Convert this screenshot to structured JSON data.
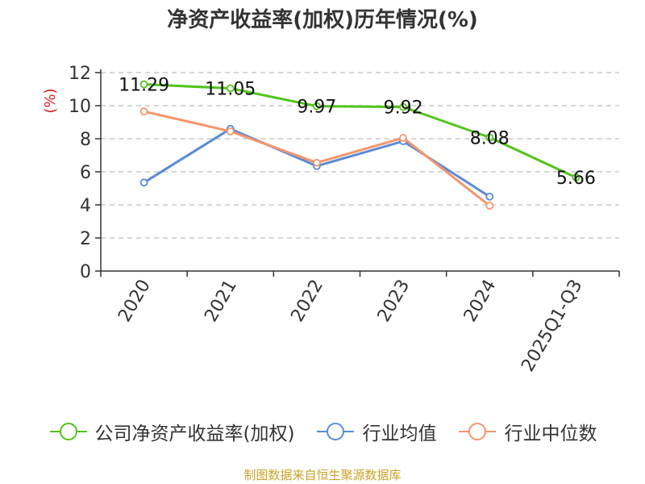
{
  "title": "净资产收益率(加权)历年情况(%)",
  "source": "制图数据来自恒生聚源数据库",
  "chart_data": {
    "type": "line",
    "categories": [
      "2020",
      "2021",
      "2022",
      "2023",
      "2024",
      "2025Q1-Q3"
    ],
    "ylabel": "(%)",
    "ylim": [
      0,
      12
    ],
    "yticks": [
      0,
      2,
      4,
      6,
      8,
      10,
      12
    ],
    "grid": true,
    "legend_position": "bottom",
    "series": [
      {
        "name": "公司净资产收益率(加权)",
        "color": "#52c41a",
        "values": [
          11.29,
          11.05,
          9.97,
          9.92,
          8.08,
          5.66
        ],
        "labels": [
          "11.29",
          "11.05",
          "9.97",
          "9.92",
          "8.08",
          "5.66"
        ]
      },
      {
        "name": "行业均值",
        "color": "#5b8bd9",
        "values": [
          5.35,
          8.6,
          6.35,
          7.85,
          4.5,
          null
        ]
      },
      {
        "name": "行业中位数",
        "color": "#f4956a",
        "values": [
          9.65,
          8.45,
          6.55,
          8.05,
          3.95,
          null
        ]
      }
    ]
  }
}
